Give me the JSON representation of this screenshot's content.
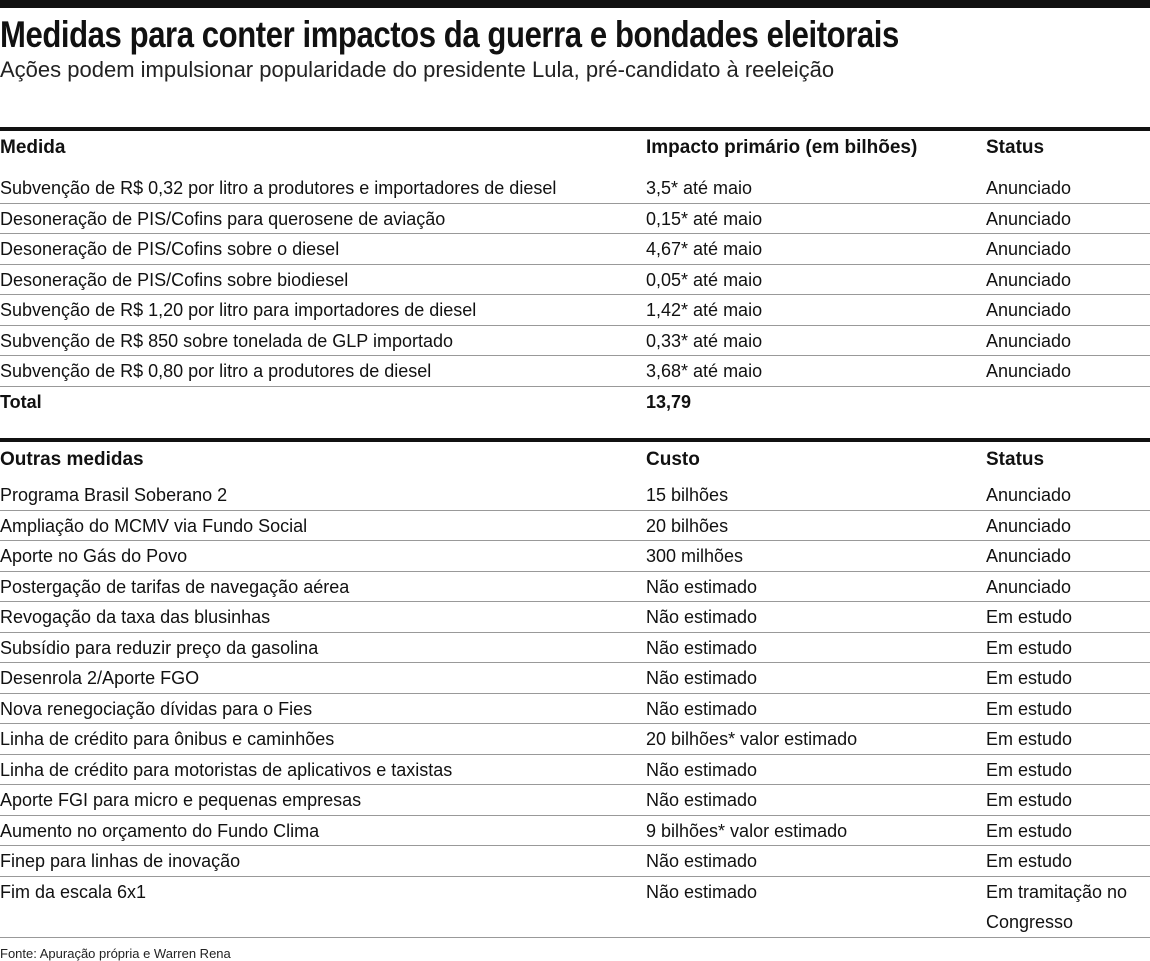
{
  "header": {
    "title": "Medidas para conter impactos da guerra e bondades eleitorais",
    "subtitle": "Ações podem impulsionar popularidade do presidente Lula, pré-candidato à reeleição"
  },
  "table1": {
    "columns": [
      "Medida",
      "Impacto primário (em bilhões)",
      "Status"
    ],
    "rows": [
      [
        "Subvenção de R$ 0,32 por litro a produtores e importadores de diesel",
        "3,5* até maio",
        "Anunciado"
      ],
      [
        "Desoneração de PIS/Cofins para querosene de aviação",
        "0,15* até maio",
        "Anunciado"
      ],
      [
        "Desoneração de PIS/Cofins sobre o diesel",
        "4,67* até maio",
        "Anunciado"
      ],
      [
        "Desoneração de PIS/Cofins sobre biodiesel",
        "0,05* até maio",
        "Anunciado"
      ],
      [
        "Subvenção de R$ 1,20 por litro para importadores de diesel",
        "1,42* até maio",
        "Anunciado"
      ],
      [
        "Subvenção de R$ 850 sobre tonelada de GLP importado",
        "0,33* até maio",
        "Anunciado"
      ],
      [
        "Subvenção de R$ 0,80 por litro a produtores de diesel",
        "3,68* até maio",
        "Anunciado"
      ]
    ],
    "total": [
      "Total",
      "13,79"
    ]
  },
  "table2": {
    "columns": [
      "Outras medidas",
      "Custo",
      "Status"
    ],
    "rows": [
      [
        "Programa Brasil Soberano 2",
        "15 bilhões",
        "Anunciado"
      ],
      [
        "Ampliação do MCMV via Fundo Social",
        "20 bilhões",
        "Anunciado"
      ],
      [
        "Aporte no Gás do Povo",
        "300 milhões",
        "Anunciado"
      ],
      [
        "Postergação de tarifas de navegação aérea",
        "Não estimado",
        "Anunciado"
      ],
      [
        "Revogação da taxa das blusinhas",
        "Não estimado",
        "Em estudo"
      ],
      [
        "Subsídio para reduzir preço da gasolina",
        "Não estimado",
        "Em estudo"
      ],
      [
        "Desenrola 2/Aporte FGO",
        "Não estimado",
        "Em estudo"
      ],
      [
        "Nova renegociação dívidas para o Fies",
        "Não estimado",
        "Em estudo"
      ],
      [
        "Linha de crédito para ônibus e caminhões",
        "20 bilhões* valor estimado",
        "Em estudo"
      ],
      [
        "Linha de crédito para motoristas de aplicativos e taxistas",
        "Não estimado",
        "Em estudo"
      ],
      [
        "Aporte FGI para micro e pequenas empresas",
        "Não estimado",
        "Em estudo"
      ],
      [
        "Aumento no orçamento do Fundo Clima",
        "9 bilhões* valor estimado",
        "Em estudo"
      ],
      [
        "Finep para linhas de inovação",
        "Não estimado",
        "Em estudo"
      ],
      [
        "Fim da escala 6x1",
        "Não estimado",
        "Em tramitação no Congresso"
      ]
    ]
  },
  "footer": "Fonte: Apuração própria e Warren Rena"
}
